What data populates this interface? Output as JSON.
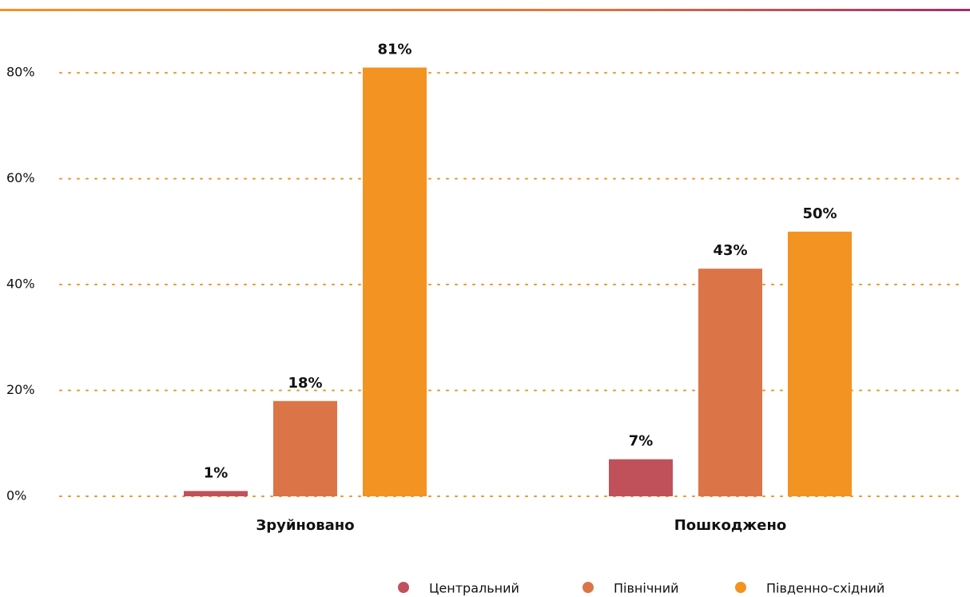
{
  "chart_data": {
    "type": "bar",
    "categories": [
      "Зруйновано",
      "Пошкоджено"
    ],
    "series": [
      {
        "name": "Центральний",
        "color": "#c0515a",
        "values": [
          1,
          7
        ],
        "value_labels": [
          "1%",
          "7%"
        ]
      },
      {
        "name": "Північний",
        "color": "#db7548",
        "values": [
          18,
          43
        ],
        "value_labels": [
          "18%",
          "43%"
        ]
      },
      {
        "name": "Південно-східний",
        "color": "#f39322",
        "values": [
          81,
          50
        ],
        "value_labels": [
          "81%",
          "50%"
        ]
      }
    ],
    "ylim": [
      0,
      85
    ],
    "yticks": [
      {
        "value": 0,
        "label": "0%"
      },
      {
        "value": 20,
        "label": "20%"
      },
      {
        "value": 40,
        "label": "40%"
      },
      {
        "value": 60,
        "label": "60%"
      },
      {
        "value": 80,
        "label": "80%"
      }
    ],
    "grid": true,
    "legend": "bottom"
  }
}
